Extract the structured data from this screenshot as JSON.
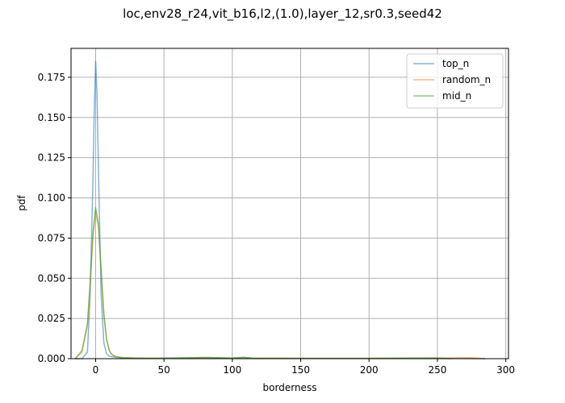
{
  "chart_data": {
    "type": "line",
    "title": "loc,env28_r24,vit_b16,l2,(1.0),layer_12,sr0.3,seed42",
    "xlabel": "borderness",
    "ylabel": "pdf",
    "xlim": [
      -18,
      302
    ],
    "ylim": [
      0,
      0.193
    ],
    "xticks": [
      0,
      50,
      100,
      150,
      200,
      250,
      300
    ],
    "yticks": [
      0.0,
      0.025,
      0.05,
      0.075,
      0.1,
      0.125,
      0.15,
      0.175
    ],
    "xtick_labels": [
      "0",
      "50",
      "100",
      "150",
      "200",
      "250",
      "300"
    ],
    "ytick_labels": [
      "0.000",
      "0.025",
      "0.050",
      "0.075",
      "0.100",
      "0.125",
      "0.150",
      "0.175"
    ],
    "grid": true,
    "legend_position": "upper right",
    "series": [
      {
        "name": "top_n",
        "color": "#1f77b4",
        "x": [
          -15,
          -10,
          -6,
          -4,
          -2,
          -1,
          0,
          1,
          2,
          4,
          6,
          8,
          10,
          15,
          20,
          40,
          80,
          100,
          108,
          115,
          150,
          200,
          250,
          285
        ],
        "y": [
          0.0,
          0.0,
          0.004,
          0.04,
          0.11,
          0.155,
          0.185,
          0.165,
          0.12,
          0.04,
          0.01,
          0.003,
          0.0015,
          0.0008,
          0.0005,
          0.0003,
          0.0006,
          0.0004,
          0.0008,
          0.0003,
          0.0002,
          0.0002,
          0.0004,
          0.0
        ]
      },
      {
        "name": "random_n",
        "color": "#ff7f0e",
        "x": [
          -15,
          -10,
          -6,
          -4,
          -2,
          0,
          2,
          4,
          6,
          8,
          10,
          12,
          15,
          20,
          30,
          50,
          80,
          100,
          150,
          200,
          240,
          255,
          265,
          275,
          285
        ],
        "y": [
          0.0,
          0.004,
          0.02,
          0.045,
          0.075,
          0.092,
          0.082,
          0.055,
          0.028,
          0.012,
          0.005,
          0.0025,
          0.0012,
          0.0006,
          0.0003,
          0.0002,
          0.0006,
          0.0004,
          0.0002,
          0.0002,
          0.0003,
          0.0003,
          0.0005,
          0.0006,
          0.0
        ]
      },
      {
        "name": "mid_n",
        "color": "#2ca02c",
        "x": [
          -15,
          -10,
          -6,
          -4,
          -2,
          0,
          2,
          4,
          6,
          8,
          10,
          12,
          15,
          20,
          30,
          50,
          80,
          100,
          108,
          115,
          150,
          200,
          240,
          250,
          260
        ],
        "y": [
          0.0,
          0.005,
          0.022,
          0.048,
          0.078,
          0.094,
          0.084,
          0.056,
          0.028,
          0.012,
          0.005,
          0.0025,
          0.0012,
          0.0006,
          0.0003,
          0.0002,
          0.0008,
          0.0004,
          0.0008,
          0.0003,
          0.0002,
          0.0002,
          0.0004,
          0.0004,
          0.0
        ]
      }
    ]
  }
}
